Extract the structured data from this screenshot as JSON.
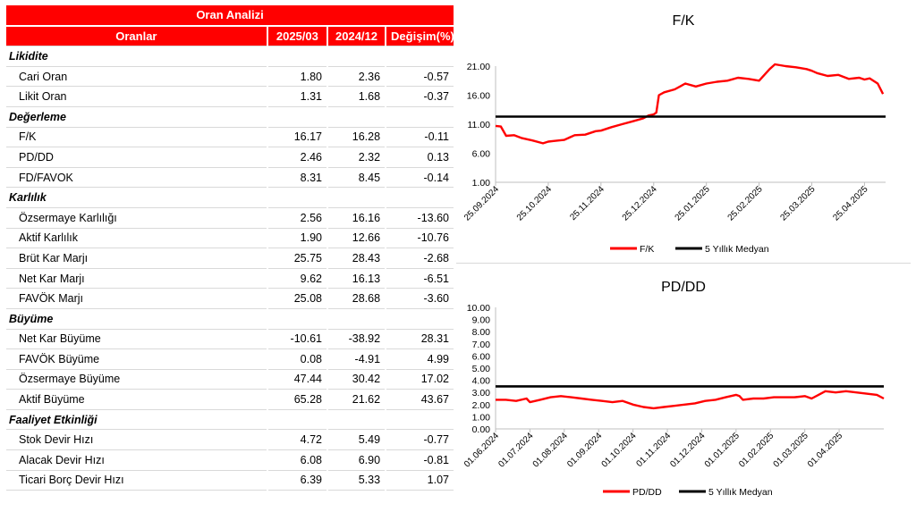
{
  "table": {
    "title": "Oran Analizi",
    "headers": [
      "Oranlar",
      "2025/03",
      "2024/12",
      "Değişim(%)"
    ],
    "sections": [
      {
        "name": "Likidite",
        "rows": [
          {
            "label": "Cari Oran",
            "v1": "1.80",
            "v2": "2.36",
            "v3": "-0.57"
          },
          {
            "label": "Likit Oran",
            "v1": "1.31",
            "v2": "1.68",
            "v3": "-0.37"
          }
        ]
      },
      {
        "name": "Değerleme",
        "rows": [
          {
            "label": "F/K",
            "v1": "16.17",
            "v2": "16.28",
            "v3": "-0.11"
          },
          {
            "label": "PD/DD",
            "v1": "2.46",
            "v2": "2.32",
            "v3": "0.13"
          },
          {
            "label": "FD/FAVOK",
            "v1": "8.31",
            "v2": "8.45",
            "v3": "-0.14"
          }
        ]
      },
      {
        "name": "Karlılık",
        "rows": [
          {
            "label": "Özsermaye Karlılığı",
            "v1": "2.56",
            "v2": "16.16",
            "v3": "-13.60"
          },
          {
            "label": "Aktif Karlılık",
            "v1": "1.90",
            "v2": "12.66",
            "v3": "-10.76"
          },
          {
            "label": "Brüt Kar Marjı",
            "v1": "25.75",
            "v2": "28.43",
            "v3": "-2.68"
          },
          {
            "label": "Net Kar Marjı",
            "v1": "9.62",
            "v2": "16.13",
            "v3": "-6.51"
          },
          {
            "label": "FAVÖK Marjı",
            "v1": "25.08",
            "v2": "28.68",
            "v3": "-3.60"
          }
        ]
      },
      {
        "name": "Büyüme",
        "rows": [
          {
            "label": "Net Kar Büyüme",
            "v1": "-10.61",
            "v2": "-38.92",
            "v3": "28.31"
          },
          {
            "label": "FAVÖK Büyüme",
            "v1": "0.08",
            "v2": "-4.91",
            "v3": "4.99"
          },
          {
            "label": "Özsermaye Büyüme",
            "v1": "47.44",
            "v2": "30.42",
            "v3": "17.02"
          },
          {
            "label": "Aktif Büyüme",
            "v1": "65.28",
            "v2": "21.62",
            "v3": "43.67"
          }
        ]
      },
      {
        "name": "Faaliyet Etkinliği",
        "rows": [
          {
            "label": "Stok Devir Hızı",
            "v1": "4.72",
            "v2": "5.49",
            "v3": "-0.77"
          },
          {
            "label": "Alacak Devir Hızı",
            "v1": "6.08",
            "v2": "6.90",
            "v3": "-0.81"
          },
          {
            "label": "Ticari Borç Devir Hızı",
            "v1": "6.39",
            "v2": "5.33",
            "v3": "1.07"
          }
        ]
      }
    ]
  },
  "colors": {
    "header_red": "#ff0000",
    "series_red": "#ff0000",
    "median_black": "#000000"
  },
  "chart_data": [
    {
      "type": "line",
      "title": "F/K",
      "ylim": [
        1.0,
        21.0
      ],
      "yticks": [
        "1.00",
        "6.00",
        "11.00",
        "16.00",
        "21.00"
      ],
      "xticks": [
        "25.09.2024",
        "25.10.2024",
        "25.11.2024",
        "25.12.2024",
        "25.01.2025",
        "25.02.2025",
        "25.03.2025",
        "25.04.2025"
      ],
      "x_range": [
        0,
        7.4
      ],
      "series": [
        {
          "name": "F/K",
          "color": "#ff0000",
          "x": [
            0,
            0.1,
            0.2,
            0.35,
            0.5,
            0.7,
            0.9,
            1.0,
            1.1,
            1.3,
            1.5,
            1.7,
            1.9,
            2.0,
            2.2,
            2.4,
            2.6,
            2.8,
            2.9,
            3.0,
            3.05,
            3.1,
            3.2,
            3.4,
            3.6,
            3.8,
            4.0,
            4.2,
            4.4,
            4.6,
            4.8,
            5.0,
            5.1,
            5.2,
            5.3,
            5.5,
            5.7,
            5.9,
            6.0,
            6.1,
            6.3,
            6.5,
            6.7,
            6.9,
            7.0,
            7.1,
            7.25,
            7.35
          ],
          "y": [
            10.7,
            10.6,
            9.0,
            9.1,
            8.6,
            8.2,
            7.7,
            8.0,
            8.1,
            8.3,
            9.1,
            9.2,
            9.8,
            9.9,
            10.5,
            11.0,
            11.5,
            12.0,
            12.5,
            12.7,
            13.0,
            16.0,
            16.5,
            17.0,
            18.0,
            17.5,
            18.0,
            18.3,
            18.5,
            19.0,
            18.8,
            18.5,
            19.5,
            20.5,
            21.3,
            21.0,
            20.8,
            20.5,
            20.2,
            19.8,
            19.3,
            19.5,
            18.8,
            19.0,
            18.7,
            18.9,
            18.0,
            16.2
          ]
        },
        {
          "name": "5 Yıllık Medyan",
          "color": "#000000",
          "x": [
            0,
            7.4
          ],
          "y": [
            12.3,
            12.3
          ]
        }
      ]
    },
    {
      "type": "line",
      "title": "PD/DD",
      "ylim": [
        0.0,
        10.0
      ],
      "yticks": [
        "0.00",
        "1.00",
        "2.00",
        "3.00",
        "4.00",
        "5.00",
        "6.00",
        "7.00",
        "8.00",
        "9.00",
        "10.00"
      ],
      "xticks": [
        "01.06.2024",
        "01.07.2024",
        "01.08.2024",
        "01.09.2024",
        "01.10.2024",
        "01.11.2024",
        "01.12.2024",
        "01.01.2025",
        "01.02.2025",
        "01.03.2025",
        "01.04.2025"
      ],
      "x_range": [
        0,
        11.3
      ],
      "series": [
        {
          "name": "PD/DD",
          "color": "#ff0000",
          "x": [
            0,
            0.3,
            0.6,
            0.9,
            1.0,
            1.3,
            1.6,
            1.9,
            2.2,
            2.5,
            2.8,
            3.1,
            3.4,
            3.7,
            4.0,
            4.3,
            4.6,
            4.9,
            5.2,
            5.5,
            5.8,
            6.1,
            6.4,
            6.7,
            7.0,
            7.1,
            7.2,
            7.5,
            7.8,
            8.1,
            8.4,
            8.7,
            9.0,
            9.2,
            9.4,
            9.6,
            9.9,
            10.2,
            10.5,
            10.8,
            11.1,
            11.3
          ],
          "y": [
            2.4,
            2.4,
            2.3,
            2.5,
            2.2,
            2.4,
            2.6,
            2.7,
            2.6,
            2.5,
            2.4,
            2.3,
            2.2,
            2.3,
            2.0,
            1.8,
            1.7,
            1.8,
            1.9,
            2.0,
            2.1,
            2.3,
            2.4,
            2.6,
            2.8,
            2.7,
            2.4,
            2.5,
            2.5,
            2.6,
            2.6,
            2.6,
            2.7,
            2.5,
            2.8,
            3.1,
            3.0,
            3.1,
            3.0,
            2.9,
            2.8,
            2.5
          ]
        },
        {
          "name": "5 Yıllık Medyan",
          "color": "#000000",
          "x": [
            0,
            11.3
          ],
          "y": [
            3.5,
            3.5
          ]
        }
      ]
    }
  ]
}
